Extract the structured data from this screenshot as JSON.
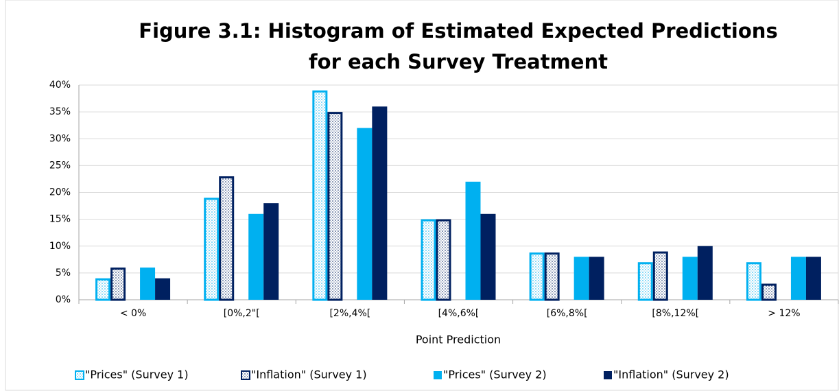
{
  "chart_data": {
    "type": "bar",
    "title": "Figure 3.1: Histogram of Estimated Expected Predictions",
    "subtitle": "for each Survey Treatment",
    "x_label": "Point Prediction",
    "categories": [
      "< 0%",
      "[0%,2\"[",
      "[2%,4%[",
      "[4%,6%[",
      "[6%,8%[",
      "[8%,12%[",
      "> 12%"
    ],
    "series": [
      {
        "name": "\"Prices\"  (Survey 1)",
        "color": "#00b0f0",
        "style": "dotted",
        "values": [
          4,
          19,
          39,
          15,
          8.8,
          7,
          7
        ]
      },
      {
        "name": "\"Inflation\"  (Survey 1)",
        "color": "#002060",
        "style": "dotted",
        "values": [
          6,
          23,
          35,
          15,
          8.8,
          9,
          3
        ]
      },
      {
        "name": "\"Prices\"  (Survey 2)",
        "color": "#00b0f0",
        "style": "solid",
        "values": [
          6,
          16,
          32,
          22,
          8,
          8,
          8
        ]
      },
      {
        "name": "\"Inflation\"  (Survey 2)",
        "color": "#002060",
        "style": "solid",
        "values": [
          4,
          18,
          36,
          16,
          8,
          10,
          8
        ]
      }
    ],
    "ylim": [
      0,
      40
    ],
    "yticks": [
      {
        "value": 0,
        "label": "0%"
      },
      {
        "value": 5,
        "label": "5%"
      },
      {
        "value": 10,
        "label": "10%"
      },
      {
        "value": 15,
        "label": "15%"
      },
      {
        "value": 20,
        "label": "20%"
      },
      {
        "value": 25,
        "label": "25%"
      },
      {
        "value": 30,
        "label": "30%"
      },
      {
        "value": 35,
        "label": "35%"
      },
      {
        "value": 40,
        "label": "40%"
      }
    ],
    "grid": true,
    "legend": "bottom"
  }
}
